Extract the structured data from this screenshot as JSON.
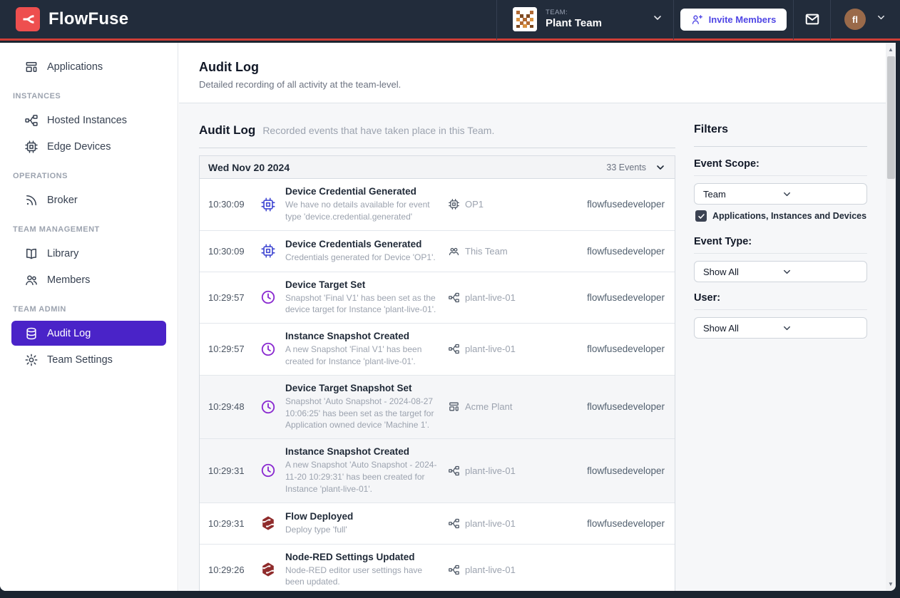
{
  "brand": {
    "name": "FlowFuse"
  },
  "header": {
    "team_label": "TEAM:",
    "team_name": "Plant Team",
    "invite_button": "Invite Members",
    "avatar_initials": "fl"
  },
  "sidebar": {
    "sections": [
      {
        "label": "",
        "items": [
          {
            "label": "Applications",
            "icon": "applications"
          }
        ]
      },
      {
        "label": "INSTANCES",
        "items": [
          {
            "label": "Hosted Instances",
            "icon": "instance"
          },
          {
            "label": "Edge Devices",
            "icon": "chip"
          }
        ]
      },
      {
        "label": "OPERATIONS",
        "items": [
          {
            "label": "Broker",
            "icon": "broker"
          }
        ]
      },
      {
        "label": "TEAM MANAGEMENT",
        "items": [
          {
            "label": "Library",
            "icon": "library"
          },
          {
            "label": "Members",
            "icon": "members"
          }
        ]
      },
      {
        "label": "TEAM ADMIN",
        "items": [
          {
            "label": "Audit Log",
            "icon": "database",
            "active": true
          },
          {
            "label": "Team Settings",
            "icon": "gear"
          }
        ]
      }
    ]
  },
  "page": {
    "title": "Audit Log",
    "subtitle": "Detailed recording of all activity at the team-level."
  },
  "card": {
    "title": "Audit Log",
    "subtitle": "Recorded events that have taken place in this Team."
  },
  "day": {
    "date": "Wed Nov 20 2024",
    "count": "33 Events"
  },
  "events": [
    {
      "time": "10:30:09",
      "icon": "chip",
      "title": "Device Credential Generated",
      "description": "We have no details available for event type 'device.credential.generated'",
      "scope": {
        "icon": "chip",
        "label": "OP1"
      },
      "user": "flowfusedeveloper",
      "shaded": false
    },
    {
      "time": "10:30:09",
      "icon": "chip",
      "title": "Device Credentials Generated",
      "description": "Credentials generated for Device 'OP1'.",
      "scope": {
        "icon": "team",
        "label": "This Team"
      },
      "user": "flowfusedeveloper",
      "shaded": false
    },
    {
      "time": "10:29:57",
      "icon": "clock",
      "title": "Device Target Set",
      "description": "Snapshot 'Final V1' has been set as the device target for Instance 'plant-live-01'.",
      "scope": {
        "icon": "instance",
        "label": "plant-live-01"
      },
      "user": "flowfusedeveloper",
      "shaded": false
    },
    {
      "time": "10:29:57",
      "icon": "clock",
      "title": "Instance Snapshot Created",
      "description": "A new Snapshot 'Final V1' has been created for Instance 'plant-live-01'.",
      "scope": {
        "icon": "instance",
        "label": "plant-live-01"
      },
      "user": "flowfusedeveloper",
      "shaded": false
    },
    {
      "time": "10:29:48",
      "icon": "clock",
      "title": "Device Target Snapshot Set",
      "description": "Snapshot 'Auto Snapshot - 2024-08-27 10:06:25' has been set as the target for Application owned device 'Machine 1'.",
      "scope": {
        "icon": "application",
        "label": "Acme Plant"
      },
      "user": "flowfusedeveloper",
      "shaded": true
    },
    {
      "time": "10:29:31",
      "icon": "clock",
      "title": "Instance Snapshot Created",
      "description": "A new Snapshot 'Auto Snapshot - 2024-11-20 10:29:31' has been created for Instance 'plant-live-01'.",
      "scope": {
        "icon": "instance",
        "label": "plant-live-01"
      },
      "user": "flowfusedeveloper",
      "shaded": true
    },
    {
      "time": "10:29:31",
      "icon": "nodered",
      "title": "Flow Deployed",
      "description": "Deploy type 'full'",
      "scope": {
        "icon": "instance",
        "label": "plant-live-01"
      },
      "user": "flowfusedeveloper",
      "shaded": false
    },
    {
      "time": "10:29:26",
      "icon": "nodered",
      "title": "Node-RED Settings Updated",
      "description": "Node-RED editor user settings have been updated.",
      "scope": {
        "icon": "instance",
        "label": "plant-live-01"
      },
      "user": "",
      "shaded": false
    }
  ],
  "filters": {
    "title": "Filters",
    "event_scope_label": "Event Scope:",
    "event_scope_value": "Team",
    "scope_checkbox_label": "Applications, Instances and Devices",
    "scope_checkbox_checked": true,
    "event_type_label": "Event Type:",
    "event_type_value": "Show All",
    "user_label": "User:",
    "user_value": "Show All"
  },
  "colors": {
    "header_bg": "#222c3b",
    "header_accent": "#cf3e36",
    "brand_red": "#ee4f4f",
    "nav_active": "#4a23c8",
    "device_icon": "#444bd3",
    "snapshot_icon": "#8a2ad0",
    "nodered_icon": "#8f2b2b",
    "page_bg": "#f6f7f9"
  }
}
